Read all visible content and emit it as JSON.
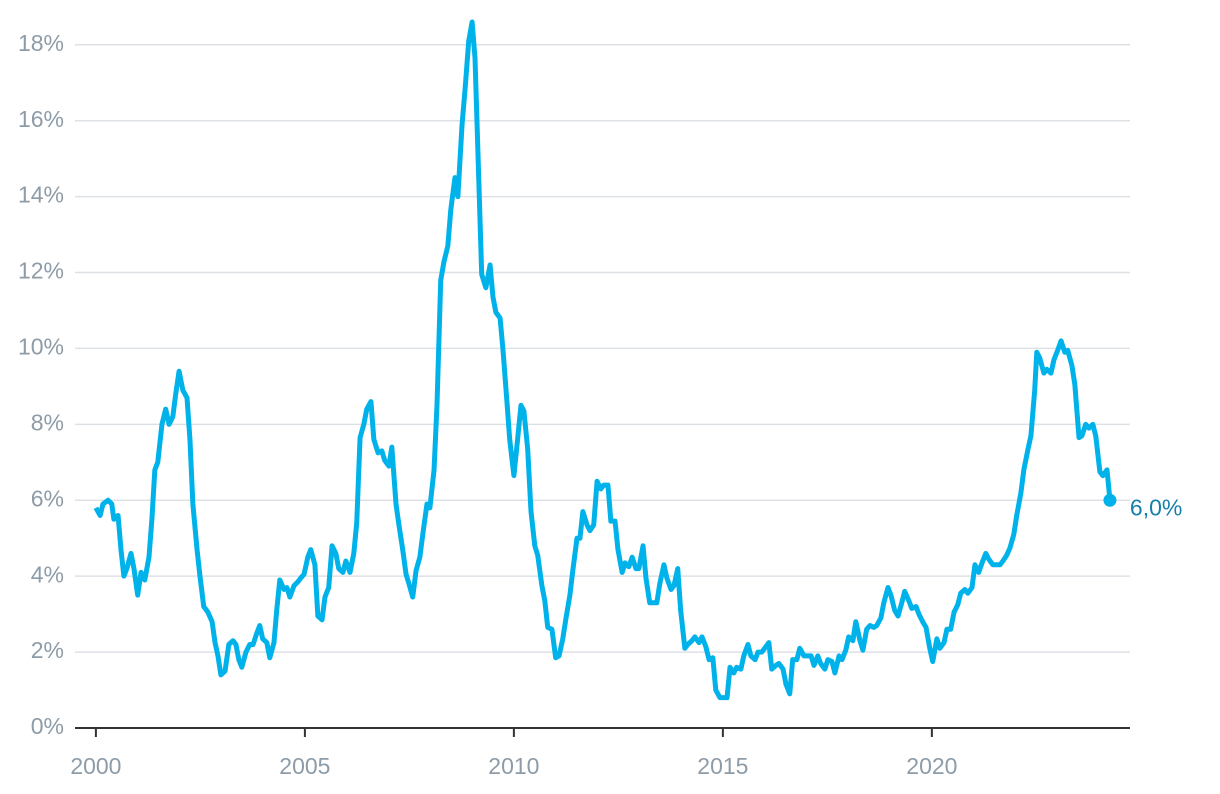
{
  "chart_data": {
    "type": "line",
    "x": [
      2000.0,
      2000.1,
      2000.17,
      2000.29,
      2000.38,
      2000.43,
      2000.53,
      2000.6,
      2000.67,
      2000.74,
      2000.84,
      2000.91,
      2001.0,
      2001.08,
      2001.17,
      2001.27,
      2001.34,
      2001.41,
      2001.48,
      2001.58,
      2001.67,
      2001.75,
      2001.84,
      2001.91,
      2001.99,
      2002.08,
      2002.18,
      2002.25,
      2002.32,
      2002.42,
      2002.49,
      2002.58,
      2002.68,
      2002.78,
      2002.85,
      2002.92,
      2002.99,
      2003.09,
      2003.18,
      2003.28,
      2003.35,
      2003.42,
      2003.49,
      2003.59,
      2003.68,
      2003.76,
      2003.85,
      2003.92,
      2003.99,
      2004.09,
      2004.16,
      2004.26,
      2004.33,
      2004.4,
      2004.5,
      2004.57,
      2004.64,
      2004.74,
      2004.83,
      2004.9,
      2004.98,
      2005.07,
      2005.14,
      2005.24,
      2005.31,
      2005.41,
      2005.48,
      2005.57,
      2005.65,
      2005.74,
      2005.81,
      2005.91,
      2005.98,
      2006.08,
      2006.17,
      2006.24,
      2006.32,
      2006.41,
      2006.48,
      2006.58,
      2006.65,
      2006.75,
      2006.84,
      2006.91,
      2007.01,
      2007.08,
      2007.18,
      2007.25,
      2007.34,
      2007.42,
      2007.49,
      2007.58,
      2007.66,
      2007.75,
      2007.82,
      2007.92,
      2007.99,
      2008.09,
      2008.16,
      2008.25,
      2008.33,
      2008.42,
      2008.49,
      2008.59,
      2008.66,
      2008.76,
      2008.83,
      2008.92,
      2009.0,
      2009.07,
      2009.16,
      2009.23,
      2009.33,
      2009.43,
      2009.5,
      2009.57,
      2009.67,
      2009.74,
      2009.83,
      2009.9,
      2010.0,
      2010.07,
      2010.17,
      2010.24,
      2010.33,
      2010.41,
      2010.5,
      2010.57,
      2010.67,
      2010.74,
      2010.81,
      2010.91,
      2011.0,
      2011.08,
      2011.17,
      2011.24,
      2011.34,
      2011.41,
      2011.51,
      2011.58,
      2011.65,
      2011.75,
      2011.82,
      2011.91,
      2011.99,
      2012.08,
      2012.15,
      2012.25,
      2012.32,
      2012.42,
      2012.49,
      2012.59,
      2012.66,
      2012.75,
      2012.83,
      2012.92,
      2012.99,
      2013.09,
      2013.16,
      2013.25,
      2013.33,
      2013.42,
      2013.49,
      2013.59,
      2013.66,
      2013.76,
      2013.83,
      2013.92,
      2013.99,
      2014.09,
      2014.16,
      2014.26,
      2014.33,
      2014.43,
      2014.5,
      2014.59,
      2014.67,
      2014.76,
      2014.83,
      2014.93,
      2015.0,
      2015.1,
      2015.17,
      2015.26,
      2015.33,
      2015.43,
      2015.5,
      2015.6,
      2015.67,
      2015.77,
      2015.84,
      2015.93,
      2016.0,
      2016.1,
      2016.17,
      2016.27,
      2016.34,
      2016.44,
      2016.51,
      2016.6,
      2016.67,
      2016.77,
      2016.84,
      2016.94,
      2017.01,
      2017.11,
      2017.18,
      2017.27,
      2017.34,
      2017.44,
      2017.51,
      2017.61,
      2017.68,
      2017.78,
      2017.85,
      2017.94,
      2018.01,
      2018.11,
      2018.18,
      2018.28,
      2018.35,
      2018.44,
      2018.52,
      2018.61,
      2018.68,
      2018.78,
      2018.85,
      2018.95,
      2019.02,
      2019.11,
      2019.19,
      2019.28,
      2019.35,
      2019.45,
      2019.52,
      2019.62,
      2019.69,
      2019.78,
      2019.86,
      2019.95,
      2020.02,
      2020.12,
      2020.19,
      2020.29,
      2020.36,
      2020.45,
      2020.53,
      2020.62,
      2020.69,
      2020.79,
      2020.86,
      2020.96,
      2021.03,
      2021.12,
      2021.2,
      2021.29,
      2021.36,
      2021.46,
      2021.53,
      2021.63,
      2021.7,
      2021.79,
      2021.87,
      2021.96,
      2022.03,
      2022.13,
      2022.2,
      2022.3,
      2022.37,
      2022.46,
      2022.51,
      2022.58,
      2022.68,
      2022.75,
      2022.85,
      2022.92,
      2023.01,
      2023.09,
      2023.18,
      2023.25,
      2023.35,
      2023.42,
      2023.52,
      2023.59,
      2023.68,
      2023.76,
      2023.85,
      2023.92,
      2024.02,
      2024.09,
      2024.19,
      2024.26
    ],
    "series": [
      {
        "color": "#00b2ea",
        "values": [
          5.8,
          5.6,
          5.9,
          6.0,
          5.9,
          5.5,
          5.6,
          4.7,
          4.0,
          4.2,
          4.6,
          4.2,
          3.5,
          4.1,
          3.9,
          4.5,
          5.5,
          6.8,
          7.0,
          8.0,
          8.4,
          8.0,
          8.2,
          8.8,
          9.4,
          8.9,
          8.7,
          7.6,
          5.9,
          4.7,
          4.0,
          3.2,
          3.05,
          2.8,
          2.25,
          1.9,
          1.4,
          1.5,
          2.2,
          2.3,
          2.2,
          1.8,
          1.6,
          2.0,
          2.2,
          2.2,
          2.5,
          2.7,
          2.35,
          2.25,
          1.85,
          2.25,
          3.15,
          3.9,
          3.65,
          3.7,
          3.45,
          3.75,
          3.85,
          3.95,
          4.05,
          4.5,
          4.7,
          4.3,
          2.95,
          2.85,
          3.45,
          3.7,
          4.8,
          4.6,
          4.2,
          4.1,
          4.4,
          4.1,
          4.6,
          5.4,
          7.65,
          8.0,
          8.4,
          8.6,
          7.6,
          7.25,
          7.3,
          7.05,
          6.9,
          7.4,
          5.9,
          5.35,
          4.7,
          4.05,
          3.8,
          3.45,
          4.15,
          4.5,
          5.1,
          5.9,
          5.8,
          6.8,
          8.5,
          11.8,
          12.3,
          12.7,
          13.65,
          14.5,
          14.0,
          15.9,
          16.8,
          18.1,
          18.6,
          17.65,
          14.45,
          11.95,
          11.6,
          12.2,
          11.35,
          10.95,
          10.8,
          9.95,
          8.65,
          7.6,
          6.65,
          7.4,
          8.5,
          8.35,
          7.35,
          5.7,
          4.8,
          4.55,
          3.75,
          3.35,
          2.65,
          2.6,
          1.85,
          1.9,
          2.35,
          2.85,
          3.5,
          4.15,
          5.0,
          5.0,
          5.7,
          5.35,
          5.2,
          5.35,
          6.5,
          6.3,
          6.4,
          6.4,
          5.45,
          5.45,
          4.7,
          4.1,
          4.35,
          4.25,
          4.5,
          4.2,
          4.2,
          4.8,
          3.95,
          3.3,
          3.3,
          3.3,
          3.8,
          4.3,
          3.95,
          3.65,
          3.75,
          4.2,
          3.1,
          2.1,
          2.2,
          2.3,
          2.4,
          2.25,
          2.4,
          2.15,
          1.8,
          1.85,
          1.0,
          0.8,
          0.8,
          0.8,
          1.6,
          1.45,
          1.6,
          1.55,
          1.9,
          2.2,
          1.9,
          1.8,
          2.0,
          2.0,
          2.1,
          2.25,
          1.55,
          1.65,
          1.7,
          1.55,
          1.15,
          0.9,
          1.8,
          1.8,
          2.1,
          1.9,
          1.9,
          1.9,
          1.65,
          1.9,
          1.7,
          1.55,
          1.8,
          1.75,
          1.45,
          1.9,
          1.8,
          2.05,
          2.4,
          2.3,
          2.8,
          2.3,
          2.05,
          2.6,
          2.7,
          2.65,
          2.7,
          2.9,
          3.3,
          3.7,
          3.5,
          3.1,
          2.95,
          3.3,
          3.6,
          3.35,
          3.15,
          3.2,
          3.0,
          2.8,
          2.65,
          2.1,
          1.75,
          2.35,
          2.1,
          2.25,
          2.6,
          2.6,
          3.05,
          3.25,
          3.55,
          3.65,
          3.55,
          3.7,
          4.3,
          4.1,
          4.35,
          4.6,
          4.45,
          4.3,
          4.3,
          4.3,
          4.4,
          4.55,
          4.75,
          5.1,
          5.6,
          6.2,
          6.8,
          7.35,
          7.7,
          8.9,
          9.9,
          9.75,
          9.35,
          9.45,
          9.35,
          9.7,
          9.95,
          10.2,
          9.9,
          9.95,
          9.55,
          9.05,
          7.65,
          7.7,
          8.0,
          7.9,
          8.0,
          7.7,
          6.75,
          6.65,
          6.8,
          6.0
        ]
      }
    ],
    "annotation": {
      "label": "6,0%",
      "color": "#157fab"
    },
    "xlim": [
      1999.5,
      2024.74
    ],
    "xticks": [
      2000,
      2005,
      2010,
      2015,
      2020
    ],
    "ylim": [
      0,
      18.6
    ],
    "yticks": [
      {
        "value": 0,
        "label": "0%"
      },
      {
        "value": 2,
        "label": "2%"
      },
      {
        "value": 4,
        "label": "4%"
      },
      {
        "value": 6,
        "label": "6%"
      },
      {
        "value": 8,
        "label": "8%"
      },
      {
        "value": 10,
        "label": "10%"
      },
      {
        "value": 12,
        "label": "12%"
      },
      {
        "value": 14,
        "label": "14%"
      },
      {
        "value": 16,
        "label": "16%"
      },
      {
        "value": 18,
        "label": "18%"
      }
    ],
    "grid": true
  }
}
